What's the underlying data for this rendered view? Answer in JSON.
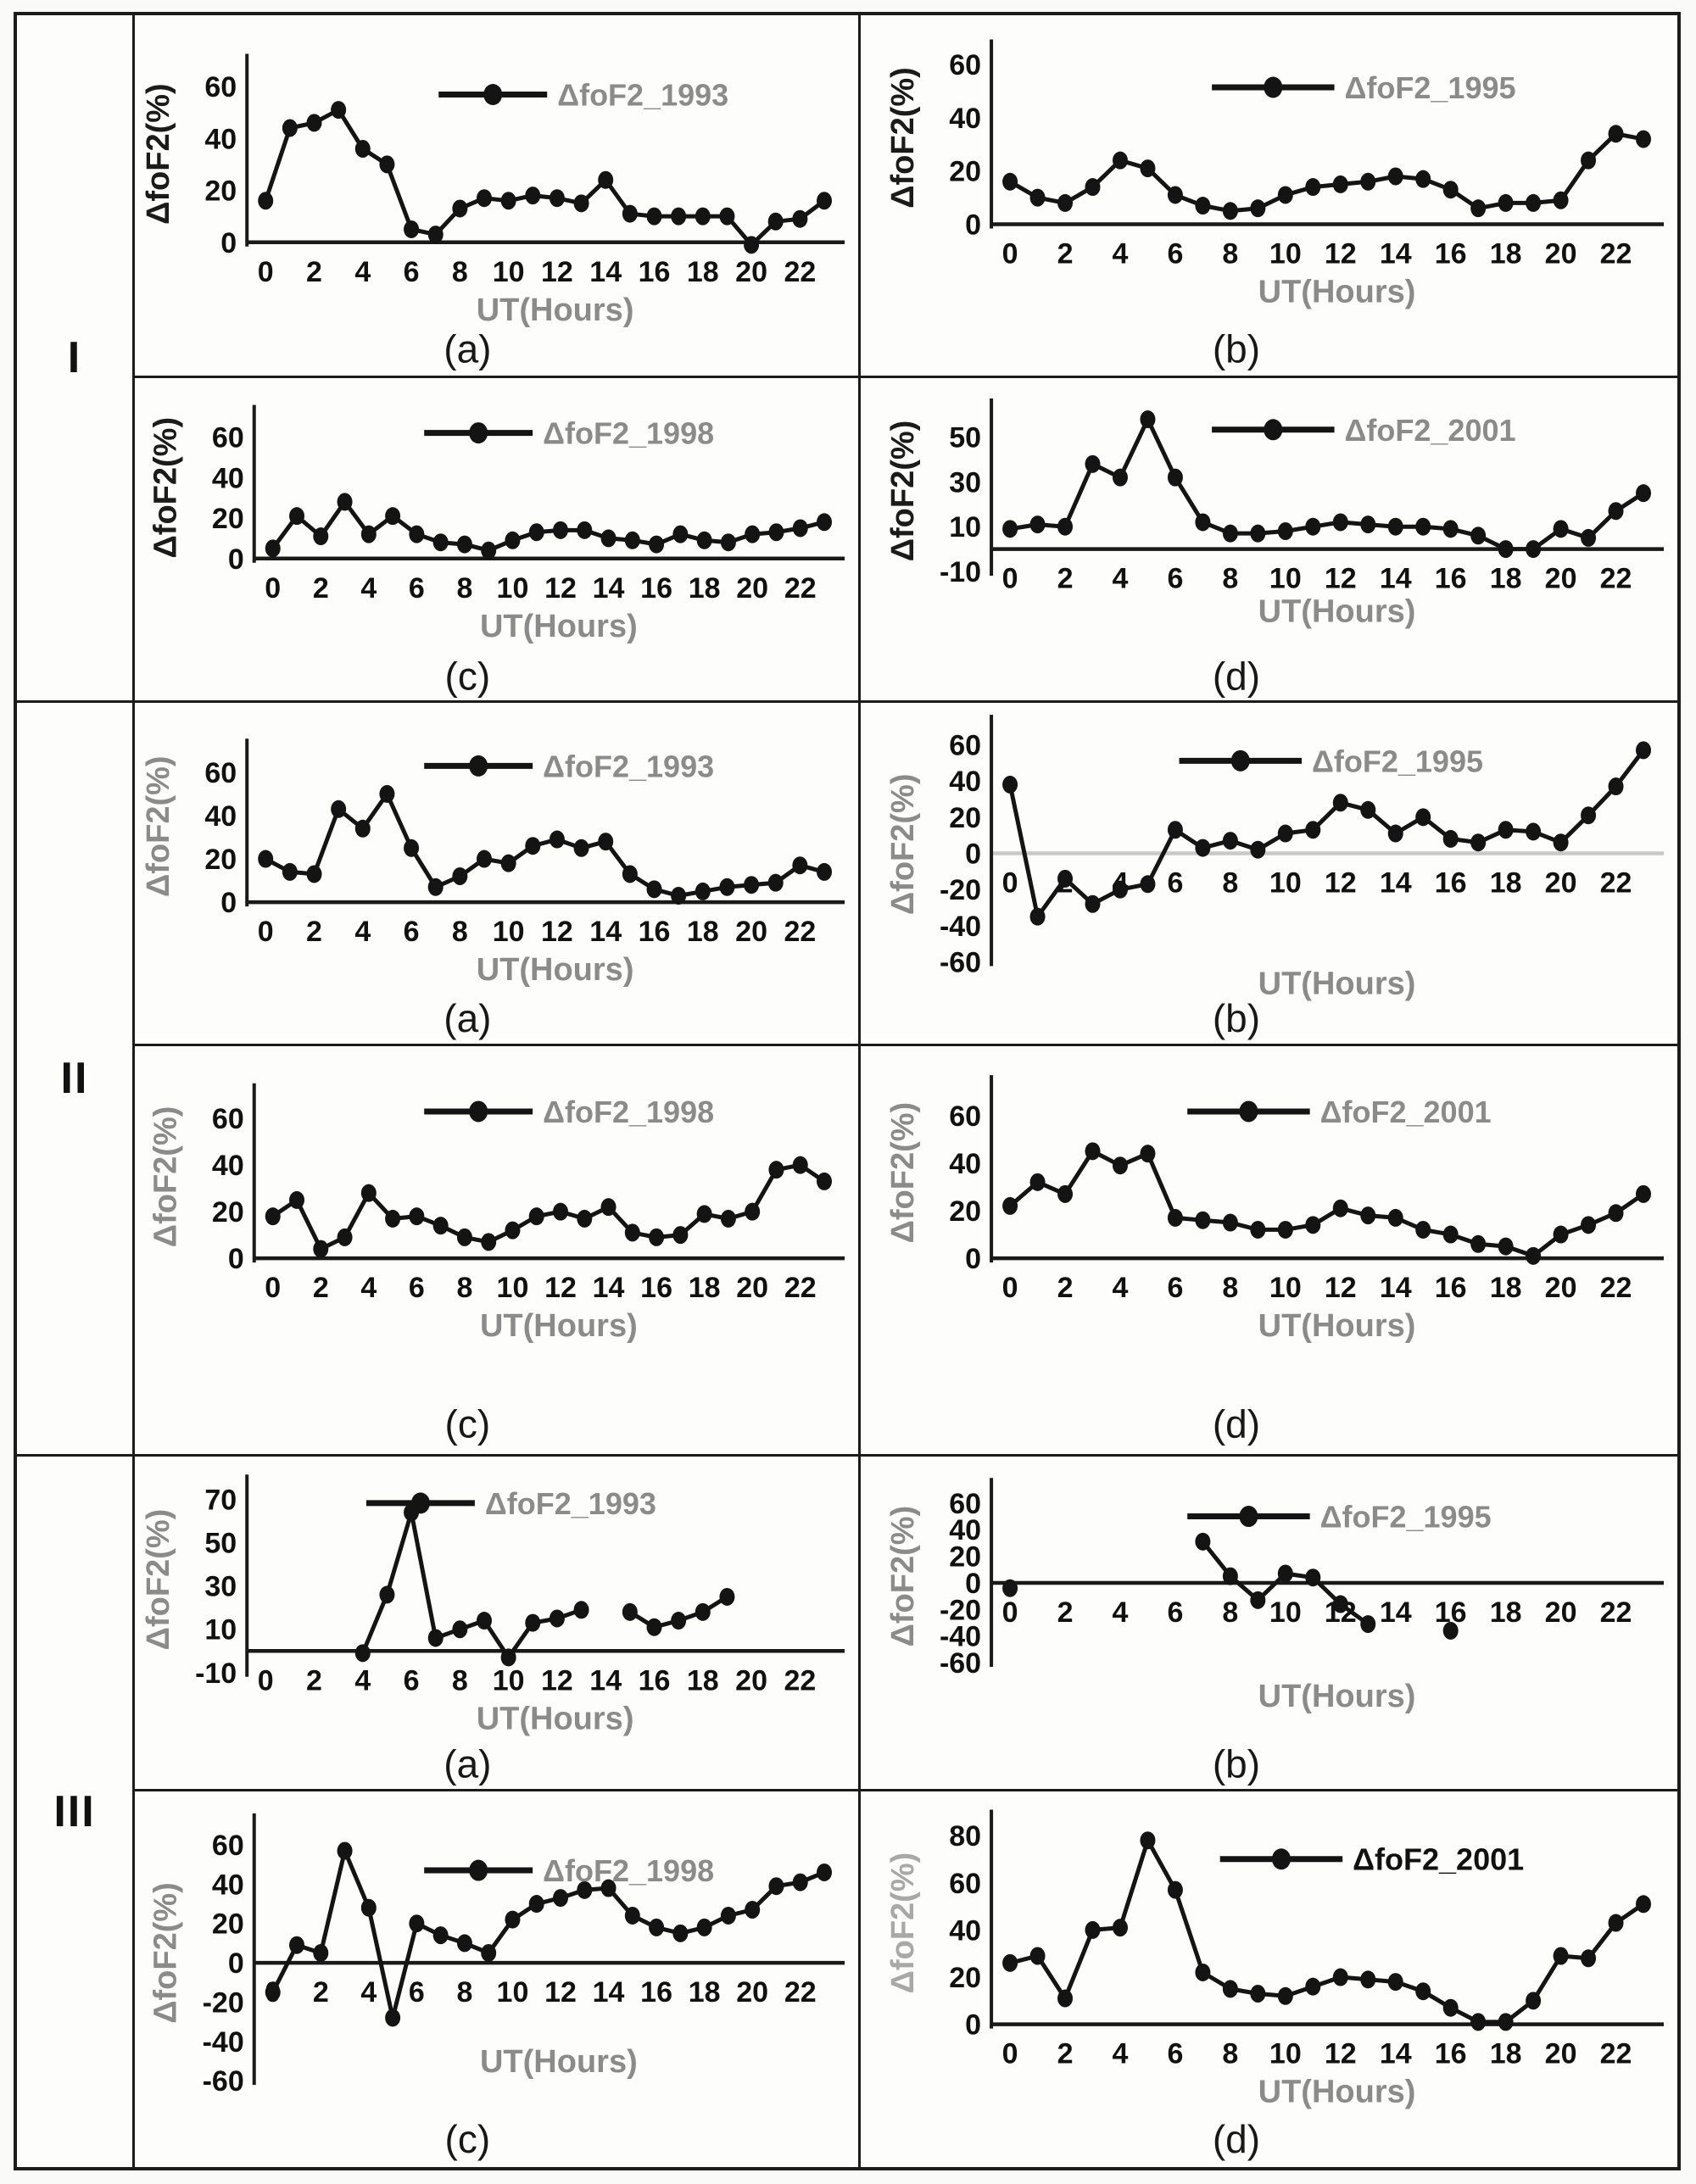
{
  "rows": [
    {
      "label": "I"
    },
    {
      "label": "II"
    },
    {
      "label": "III"
    }
  ],
  "colors": {
    "series": "#141414",
    "axis": "#1a1a1a",
    "tick_text": "#111111",
    "muted_text": "#8b8b8b",
    "light_text": "#a8a8a8",
    "zero_line_gray": "#c9c9c9"
  },
  "chart_data": [
    {
      "type": "line",
      "row": "I",
      "panel_label": "(a)",
      "legend": "ΔfoF2_1993",
      "xlabel": "UT(Hours)",
      "ylabel": "ΔfoF2(%)",
      "x": [
        0,
        1,
        2,
        3,
        4,
        5,
        6,
        7,
        8,
        9,
        10,
        11,
        12,
        13,
        14,
        15,
        16,
        17,
        18,
        19,
        20,
        21,
        22,
        23
      ],
      "values": [
        16,
        44,
        46,
        51,
        36,
        30,
        5,
        3,
        13,
        17,
        16,
        18,
        17,
        15,
        24,
        11,
        10,
        10,
        10,
        10,
        -1,
        8,
        9,
        16
      ],
      "xticks": [
        0,
        2,
        4,
        6,
        8,
        10,
        12,
        14,
        16,
        18,
        20,
        22
      ],
      "yticks": [
        0,
        20,
        40,
        60
      ],
      "ylim": [
        0,
        60
      ],
      "legend_position": "inside-top-center",
      "styles": {
        "ylabel_tone": "dark",
        "legend_tone": "muted"
      }
    },
    {
      "type": "line",
      "row": "I",
      "panel_label": "(b)",
      "legend": "ΔfoF2_1995",
      "xlabel": "UT(Hours)",
      "ylabel": "ΔfoF2(%)",
      "x": [
        0,
        1,
        2,
        3,
        4,
        5,
        6,
        7,
        8,
        9,
        10,
        11,
        12,
        13,
        14,
        15,
        16,
        17,
        18,
        19,
        20,
        21,
        22,
        23
      ],
      "values": [
        16,
        10,
        8,
        14,
        24,
        21,
        11,
        7,
        5,
        6,
        11,
        14,
        15,
        16,
        18,
        17,
        13,
        6,
        8,
        8,
        9,
        24,
        34,
        32
      ],
      "xticks": [
        0,
        2,
        4,
        6,
        8,
        10,
        12,
        14,
        16,
        18,
        20,
        22
      ],
      "yticks": [
        0,
        20,
        40,
        60
      ],
      "ylim": [
        0,
        60
      ],
      "legend_position": "inside-top-center",
      "styles": {
        "ylabel_tone": "dark",
        "legend_tone": "muted"
      }
    },
    {
      "type": "line",
      "row": "I",
      "panel_label": "(c)",
      "legend": "ΔfoF2_1998",
      "xlabel": "UT(Hours)",
      "ylabel": "ΔfoF2(%)",
      "x": [
        0,
        1,
        2,
        3,
        4,
        5,
        6,
        7,
        8,
        9,
        10,
        11,
        12,
        13,
        14,
        15,
        16,
        17,
        18,
        19,
        20,
        21,
        22,
        23
      ],
      "values": [
        5,
        21,
        11,
        28,
        12,
        21,
        12,
        8,
        7,
        4,
        9,
        13,
        14,
        14,
        10,
        9,
        7,
        12,
        9,
        8,
        12,
        13,
        15,
        18
      ],
      "xticks": [
        0,
        2,
        4,
        6,
        8,
        10,
        12,
        14,
        16,
        18,
        20,
        22
      ],
      "yticks": [
        0,
        20,
        40,
        60
      ],
      "ylim": [
        0,
        60
      ],
      "legend_position": "inside-top-center",
      "styles": {
        "ylabel_tone": "dark",
        "legend_tone": "muted"
      }
    },
    {
      "type": "line",
      "row": "I",
      "panel_label": "(d)",
      "legend": "ΔfoF2_2001",
      "xlabel": "UT(Hours)",
      "ylabel": "ΔfoF2(%)",
      "x": [
        0,
        1,
        2,
        3,
        4,
        5,
        6,
        7,
        8,
        9,
        10,
        11,
        12,
        13,
        14,
        15,
        16,
        17,
        18,
        19,
        20,
        21,
        22,
        23
      ],
      "values": [
        9,
        11,
        10,
        38,
        32,
        58,
        32,
        12,
        7,
        7,
        8,
        10,
        12,
        11,
        10,
        10,
        9,
        6,
        0,
        0,
        9,
        5,
        17,
        25
      ],
      "xticks": [
        0,
        2,
        4,
        6,
        8,
        10,
        12,
        14,
        16,
        18,
        20,
        22
      ],
      "yticks": [
        -10,
        10,
        30,
        50
      ],
      "ylim": [
        -10,
        50
      ],
      "legend_position": "inside-top-center",
      "styles": {
        "ylabel_tone": "dark",
        "legend_tone": "muted"
      }
    },
    {
      "type": "line",
      "row": "II",
      "panel_label": "(a)",
      "legend": "ΔfoF2_1993",
      "xlabel": "UT(Hours)",
      "ylabel": "ΔfoF2(%)",
      "x": [
        0,
        1,
        2,
        3,
        4,
        5,
        6,
        7,
        8,
        9,
        10,
        11,
        12,
        13,
        14,
        15,
        16,
        17,
        18,
        19,
        20,
        21,
        22,
        23
      ],
      "values": [
        20,
        14,
        13,
        43,
        34,
        50,
        25,
        7,
        12,
        20,
        18,
        26,
        29,
        25,
        28,
        13,
        6,
        3,
        5,
        7,
        8,
        9,
        17,
        14
      ],
      "xticks": [
        0,
        2,
        4,
        6,
        8,
        10,
        12,
        14,
        16,
        18,
        20,
        22
      ],
      "yticks": [
        0,
        20,
        40,
        60
      ],
      "ylim": [
        0,
        60
      ],
      "legend_position": "inside-top-center",
      "styles": {
        "ylabel_tone": "muted",
        "legend_tone": "muted"
      }
    },
    {
      "type": "line",
      "row": "II",
      "panel_label": "(b)",
      "legend": "ΔfoF2_1995",
      "xlabel": "UT(Hours)",
      "ylabel": "ΔfoF2(%)",
      "x": [
        0,
        1,
        2,
        3,
        4,
        5,
        6,
        7,
        8,
        9,
        10,
        11,
        12,
        13,
        14,
        15,
        16,
        17,
        18,
        19,
        20,
        21,
        22,
        23
      ],
      "values": [
        38,
        -35,
        -14,
        -28,
        -20,
        -17,
        13,
        3,
        7,
        2,
        11,
        13,
        28,
        24,
        11,
        20,
        8,
        6,
        13,
        12,
        6,
        21,
        37,
        57
      ],
      "xticks": [
        0,
        2,
        4,
        6,
        8,
        10,
        12,
        14,
        16,
        18,
        20,
        22
      ],
      "yticks": [
        -60,
        -40,
        -20,
        0,
        20,
        40,
        60
      ],
      "ylim": [
        -60,
        60
      ],
      "zero_line": "gray",
      "legend_position": "inside-top-center",
      "styles": {
        "ylabel_tone": "muted",
        "legend_tone": "muted"
      }
    },
    {
      "type": "line",
      "row": "II",
      "panel_label": "(c)",
      "legend": "ΔfoF2_1998",
      "xlabel": "UT(Hours)",
      "ylabel": "ΔfoF2(%)",
      "x": [
        0,
        1,
        2,
        3,
        4,
        5,
        6,
        7,
        8,
        9,
        10,
        11,
        12,
        13,
        14,
        15,
        16,
        17,
        18,
        19,
        20,
        21,
        22,
        23
      ],
      "values": [
        18,
        25,
        4,
        9,
        28,
        17,
        18,
        14,
        9,
        7,
        12,
        18,
        20,
        17,
        22,
        11,
        9,
        10,
        19,
        17,
        20,
        38,
        40,
        33
      ],
      "xticks": [
        0,
        2,
        4,
        6,
        8,
        10,
        12,
        14,
        16,
        18,
        20,
        22
      ],
      "yticks": [
        0,
        20,
        40,
        60
      ],
      "ylim": [
        0,
        60
      ],
      "legend_position": "inside-top-center",
      "styles": {
        "ylabel_tone": "muted",
        "legend_tone": "muted"
      }
    },
    {
      "type": "line",
      "row": "II",
      "panel_label": "(d)",
      "legend": "ΔfoF2_2001",
      "xlabel": "UT(Hours)",
      "ylabel": "ΔfoF2(%)",
      "x": [
        0,
        1,
        2,
        3,
        4,
        5,
        6,
        7,
        8,
        9,
        10,
        11,
        12,
        13,
        14,
        15,
        16,
        17,
        18,
        19,
        20,
        21,
        22,
        23
      ],
      "values": [
        22,
        32,
        27,
        45,
        39,
        44,
        17,
        16,
        15,
        12,
        12,
        14,
        21,
        18,
        17,
        12,
        10,
        6,
        5,
        1,
        10,
        14,
        19,
        27
      ],
      "xticks": [
        0,
        2,
        4,
        6,
        8,
        10,
        12,
        14,
        16,
        18,
        20,
        22
      ],
      "yticks": [
        0,
        20,
        40,
        60
      ],
      "ylim": [
        0,
        60
      ],
      "legend_position": "inside-top-center",
      "styles": {
        "ylabel_tone": "muted",
        "legend_tone": "muted"
      }
    },
    {
      "type": "line",
      "row": "III",
      "panel_label": "(a)",
      "legend": "ΔfoF2_1993",
      "xlabel": "UT(Hours)",
      "ylabel": "ΔfoF2(%)",
      "x": [
        0,
        1,
        2,
        3,
        4,
        5,
        6,
        7,
        8,
        9,
        10,
        11,
        12,
        13,
        14,
        15,
        16,
        17,
        18,
        19,
        20,
        21,
        22,
        23
      ],
      "values": [
        null,
        null,
        null,
        null,
        -1,
        26,
        64,
        6,
        10,
        14,
        -3,
        13,
        15,
        19,
        null,
        18,
        11,
        14,
        18,
        25,
        null,
        null,
        null,
        null
      ],
      "xticks": [
        0,
        2,
        4,
        6,
        8,
        10,
        12,
        14,
        16,
        18,
        20,
        22
      ],
      "yticks": [
        -10,
        10,
        30,
        50,
        70
      ],
      "ylim": [
        -10,
        70
      ],
      "legend_position": "inside-top-left",
      "styles": {
        "ylabel_tone": "muted",
        "legend_tone": "muted"
      }
    },
    {
      "type": "line",
      "row": "III",
      "panel_label": "(b)",
      "legend": "ΔfoF2_1995",
      "xlabel": "UT(Hours)",
      "ylabel": "ΔfoF2(%)",
      "x": [
        0,
        1,
        2,
        3,
        4,
        5,
        6,
        7,
        8,
        9,
        10,
        11,
        12,
        13,
        14,
        15,
        16,
        17,
        18,
        19,
        20,
        21,
        22,
        23
      ],
      "values": [
        -4,
        null,
        null,
        null,
        null,
        null,
        null,
        31,
        5,
        -13,
        7,
        4,
        -16,
        -31,
        null,
        null,
        -36,
        null,
        null,
        null,
        null,
        null,
        null,
        null
      ],
      "xticks": [
        0,
        2,
        4,
        6,
        8,
        10,
        12,
        14,
        16,
        18,
        20,
        22
      ],
      "yticks": [
        -60,
        -40,
        -20,
        0,
        20,
        40,
        60
      ],
      "ylim": [
        -60,
        60
      ],
      "legend_position": "inside-top-center",
      "styles": {
        "ylabel_tone": "muted",
        "legend_tone": "muted"
      }
    },
    {
      "type": "line",
      "row": "III",
      "panel_label": "(c)",
      "legend": "ΔfoF2_1998",
      "xlabel": "UT(Hours)",
      "ylabel": "ΔfoF2(%)",
      "x": [
        0,
        1,
        2,
        3,
        4,
        5,
        6,
        7,
        8,
        9,
        10,
        11,
        12,
        13,
        14,
        15,
        16,
        17,
        18,
        19,
        20,
        21,
        22,
        23
      ],
      "values": [
        -15,
        9,
        5,
        57,
        28,
        -28,
        20,
        14,
        10,
        5,
        22,
        30,
        33,
        37,
        38,
        24,
        18,
        15,
        18,
        24,
        27,
        39,
        41,
        46
      ],
      "xticks": [
        0,
        2,
        4,
        6,
        8,
        10,
        12,
        14,
        16,
        18,
        20,
        22
      ],
      "yticks": [
        -60,
        -40,
        -20,
        0,
        20,
        40,
        60
      ],
      "ylim": [
        -60,
        60
      ],
      "legend_position": "inside-top-center",
      "styles": {
        "ylabel_tone": "muted",
        "legend_tone": "muted"
      }
    },
    {
      "type": "line",
      "row": "III",
      "panel_label": "(d)",
      "legend": "ΔfoF2_2001",
      "xlabel": "UT(Hours)",
      "ylabel": "ΔfoF2(%)",
      "x": [
        0,
        1,
        2,
        3,
        4,
        5,
        6,
        7,
        8,
        9,
        10,
        11,
        12,
        13,
        14,
        15,
        16,
        17,
        18,
        19,
        20,
        21,
        22,
        23
      ],
      "values": [
        26,
        29,
        11,
        40,
        41,
        78,
        57,
        22,
        15,
        13,
        12,
        16,
        20,
        19,
        18,
        14,
        7,
        1,
        1,
        10,
        29,
        28,
        43,
        51
      ],
      "xticks": [
        0,
        2,
        4,
        6,
        8,
        10,
        12,
        14,
        16,
        18,
        20,
        22
      ],
      "yticks": [
        0,
        20,
        40,
        60,
        80
      ],
      "ylim": [
        0,
        80
      ],
      "legend_position": "inside-top-center",
      "styles": {
        "ylabel_tone": "light",
        "legend_tone": "dark"
      }
    }
  ]
}
